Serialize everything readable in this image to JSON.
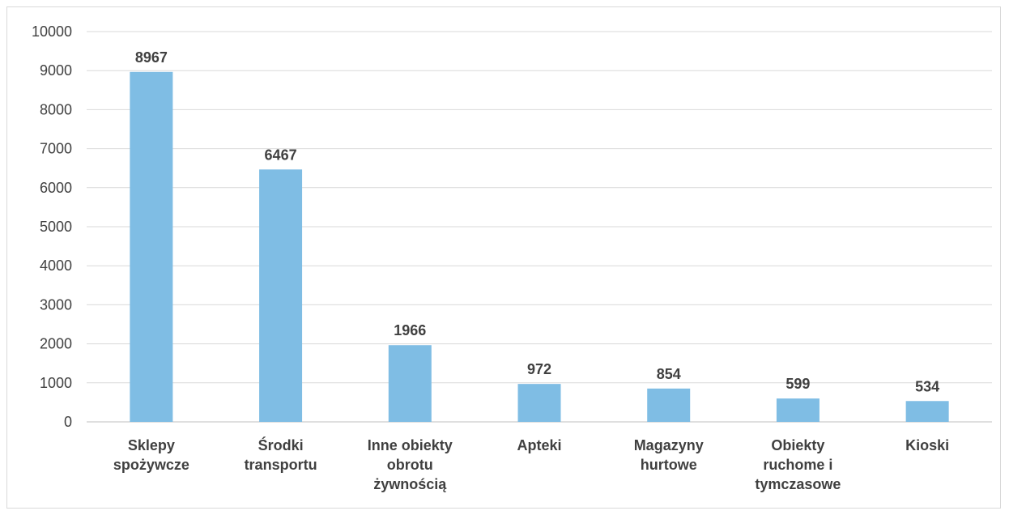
{
  "chart_data": {
    "type": "bar",
    "categories": [
      [
        "Sklepy",
        "spożywcze"
      ],
      [
        "Środki",
        "transportu"
      ],
      [
        "Inne obiekty",
        "obrotu",
        "żywnością"
      ],
      [
        "Apteki"
      ],
      [
        "Magazyny",
        "hurtowe"
      ],
      [
        "Obiekty",
        "ruchome i",
        "tymczasowe"
      ],
      [
        "Kioski"
      ]
    ],
    "values": [
      8967,
      6467,
      1966,
      972,
      854,
      599,
      534
    ],
    "data_labels": [
      "8967",
      "6467",
      "1966",
      "972",
      "854",
      "599",
      "534"
    ],
    "y_ticks": [
      "0",
      "1000",
      "2000",
      "3000",
      "4000",
      "5000",
      "6000",
      "7000",
      "8000",
      "9000",
      "10000"
    ],
    "ylim": [
      0,
      10000
    ],
    "grid": true,
    "bar_color": "#7fbde4",
    "title": "",
    "xlabel": "",
    "ylabel": ""
  }
}
